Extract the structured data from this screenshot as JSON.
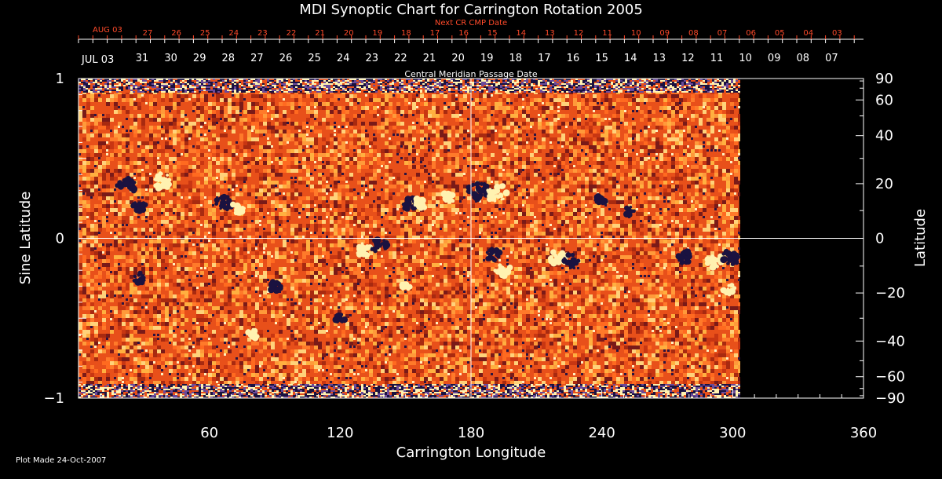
{
  "chart_data": {
    "type": "heatmap",
    "title": "MDI Synoptic Chart for Carrington Rotation 2005",
    "xlabel": "Carrington Longitude",
    "ylabel_left": "Sine Latitude",
    "ylabel_right": "Latitude",
    "xlim": [
      0,
      360
    ],
    "ylim": [
      -1,
      1
    ],
    "data_extent_longitude": [
      0,
      303
    ],
    "x_ticks": [
      60,
      120,
      180,
      240,
      300,
      360
    ],
    "y_ticks_left": [
      {
        "value": 1,
        "label": "1"
      },
      {
        "value": 0,
        "label": "0"
      },
      {
        "value": -1,
        "label": "−1"
      }
    ],
    "y_ticks_right": [
      90,
      60,
      40,
      20,
      0,
      -20,
      -40,
      -60,
      -90
    ],
    "y_tick_labels_right": [
      "90",
      "60",
      "40",
      "20",
      "0",
      "−20",
      "−40",
      "−60",
      "−90"
    ],
    "crosshair": {
      "longitude": 180,
      "sine_latitude": 0
    },
    "top_axis_red": {
      "label": "Next CR CMP Date",
      "first_label": "AUG 03",
      "labels": [
        "27",
        "26",
        "25",
        "24",
        "23",
        "22",
        "21",
        "20",
        "19",
        "18",
        "17",
        "16",
        "15",
        "14",
        "13",
        "12",
        "11",
        "10",
        "09",
        "08",
        "07",
        "06",
        "05",
        "04",
        "03"
      ]
    },
    "top_axis_white": {
      "label": "Central Meridian Passage Date",
      "first_label": "JUL 03",
      "labels": [
        "31",
        "30",
        "29",
        "28",
        "27",
        "26",
        "25",
        "24",
        "23",
        "22",
        "21",
        "20",
        "19",
        "18",
        "17",
        "16",
        "15",
        "14",
        "13",
        "12",
        "11",
        "10",
        "09",
        "08",
        "07"
      ]
    },
    "active_regions": [
      {
        "lon": 22,
        "sinlat": 0.33,
        "polarity": "negative",
        "strength": 0.9
      },
      {
        "lon": 38,
        "sinlat": 0.36,
        "polarity": "positive",
        "strength": 0.9
      },
      {
        "lon": 28,
        "sinlat": 0.2,
        "polarity": "negative",
        "strength": 0.7
      },
      {
        "lon": 67,
        "sinlat": 0.22,
        "polarity": "negative",
        "strength": 0.8
      },
      {
        "lon": 73,
        "sinlat": 0.19,
        "polarity": "positive",
        "strength": 0.6
      },
      {
        "lon": 130,
        "sinlat": -0.07,
        "polarity": "positive",
        "strength": 0.8
      },
      {
        "lon": 138,
        "sinlat": -0.05,
        "polarity": "negative",
        "strength": 0.8
      },
      {
        "lon": 152,
        "sinlat": 0.22,
        "polarity": "negative",
        "strength": 0.8
      },
      {
        "lon": 157,
        "sinlat": 0.22,
        "polarity": "positive",
        "strength": 0.6
      },
      {
        "lon": 170,
        "sinlat": 0.26,
        "polarity": "positive",
        "strength": 0.6
      },
      {
        "lon": 183,
        "sinlat": 0.3,
        "polarity": "negative",
        "strength": 1.0
      },
      {
        "lon": 192,
        "sinlat": 0.28,
        "polarity": "positive",
        "strength": 1.0
      },
      {
        "lon": 195,
        "sinlat": -0.2,
        "polarity": "positive",
        "strength": 0.8
      },
      {
        "lon": 190,
        "sinlat": -0.1,
        "polarity": "negative",
        "strength": 0.7
      },
      {
        "lon": 220,
        "sinlat": -0.12,
        "polarity": "positive",
        "strength": 0.8
      },
      {
        "lon": 226,
        "sinlat": -0.14,
        "polarity": "negative",
        "strength": 0.7
      },
      {
        "lon": 240,
        "sinlat": 0.24,
        "polarity": "negative",
        "strength": 0.6
      },
      {
        "lon": 253,
        "sinlat": 0.17,
        "polarity": "negative",
        "strength": 0.5
      },
      {
        "lon": 278,
        "sinlat": -0.12,
        "polarity": "negative",
        "strength": 0.7
      },
      {
        "lon": 292,
        "sinlat": -0.14,
        "polarity": "positive",
        "strength": 0.8
      },
      {
        "lon": 299,
        "sinlat": -0.12,
        "polarity": "negative",
        "strength": 0.8
      },
      {
        "lon": 298,
        "sinlat": -0.32,
        "polarity": "positive",
        "strength": 0.6
      },
      {
        "lon": 28,
        "sinlat": -0.25,
        "polarity": "negative",
        "strength": 0.6
      },
      {
        "lon": 90,
        "sinlat": -0.3,
        "polarity": "negative",
        "strength": 0.6
      },
      {
        "lon": 80,
        "sinlat": -0.6,
        "polarity": "positive",
        "strength": 0.5
      },
      {
        "lon": 120,
        "sinlat": -0.5,
        "polarity": "negative",
        "strength": 0.5
      },
      {
        "lon": 150,
        "sinlat": -0.3,
        "polarity": "positive",
        "strength": 0.4
      }
    ]
  },
  "footer": {
    "plot_made": "Plot Made 24-Oct-2007"
  },
  "colors": {
    "background": "#000000",
    "field_base": "#e8501a",
    "positive": "#fff2b0",
    "negative": "#1a1240",
    "axis": "#ffffff",
    "top_axis_red": "#ff4a2a"
  }
}
